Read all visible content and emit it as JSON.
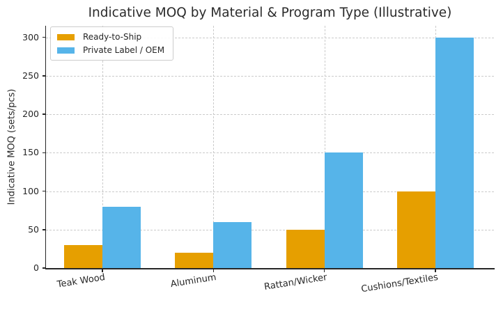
{
  "chart_data": {
    "type": "bar",
    "title": "Indicative MOQ by Material & Program Type (Illustrative)",
    "xlabel": "",
    "ylabel": "Indicative MOQ (sets/pcs)",
    "categories": [
      "Teak Wood",
      "Aluminum",
      "Rattan/Wicker",
      "Cushions/Textiles"
    ],
    "series": [
      {
        "name": "Ready-to-Ship",
        "color": "#E69F00",
        "values": [
          30,
          20,
          50,
          100
        ]
      },
      {
        "name": "Private Label / OEM",
        "color": "#56B4E9",
        "values": [
          80,
          60,
          150,
          300
        ]
      }
    ],
    "y_ticks": [
      0,
      50,
      100,
      150,
      200,
      250,
      300
    ],
    "ylim": [
      0,
      315
    ],
    "grid": "dashed, horizontal and vertical",
    "legend_position": "upper-left",
    "colors": {
      "grid": "#cbcbcb",
      "axis": "#262626",
      "text": "#262626",
      "background": "#ffffff"
    }
  }
}
